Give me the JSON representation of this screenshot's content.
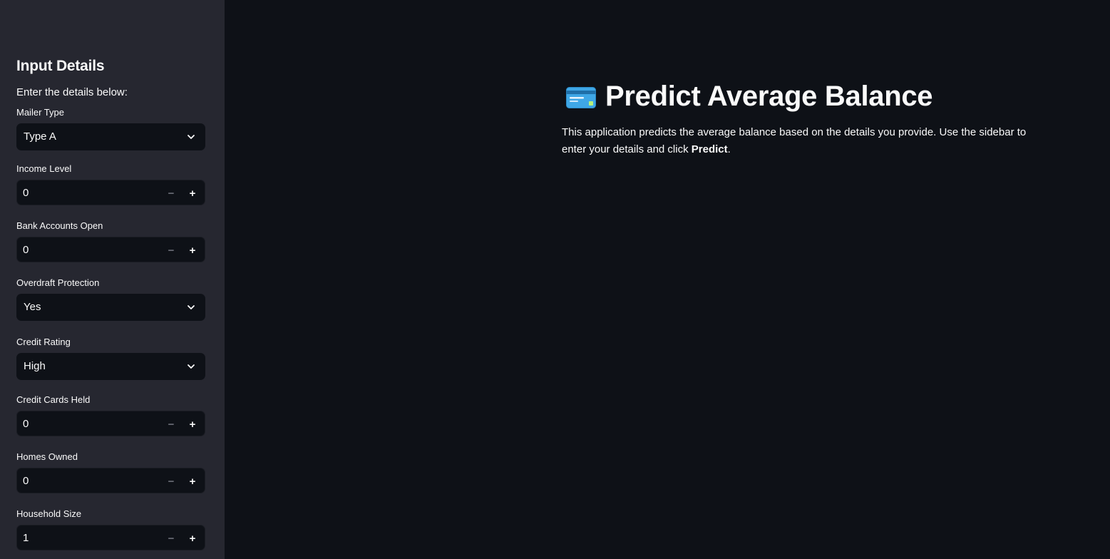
{
  "sidebar": {
    "title": "Input Details",
    "subtitle": "Enter the details below:",
    "fields": {
      "mailer_type": {
        "label": "Mailer Type",
        "value": "Type A",
        "kind": "select"
      },
      "income_level": {
        "label": "Income Level",
        "value": "0",
        "kind": "number"
      },
      "bank_accounts_open": {
        "label": "Bank Accounts Open",
        "value": "0",
        "kind": "number"
      },
      "overdraft_protection": {
        "label": "Overdraft Protection",
        "value": "Yes",
        "kind": "select"
      },
      "credit_rating": {
        "label": "Credit Rating",
        "value": "High",
        "kind": "select"
      },
      "credit_cards_held": {
        "label": "Credit Cards Held",
        "value": "0",
        "kind": "number"
      },
      "homes_owned": {
        "label": "Homes Owned",
        "value": "0",
        "kind": "number"
      },
      "household_size": {
        "label": "Household Size",
        "value": "1",
        "kind": "number"
      }
    },
    "stepper": {
      "minus": "−",
      "plus": "+"
    }
  },
  "main": {
    "title": "Predict Average Balance",
    "intro_prefix": "This application predicts the average balance based on the details you provide. Use the sidebar to enter your details and click ",
    "intro_bold": "Predict",
    "intro_suffix": ".",
    "title_icon": "credit-card-icon"
  },
  "colors": {
    "background": "#0e1117",
    "sidebar": "#262730",
    "text": "#fafafa"
  }
}
